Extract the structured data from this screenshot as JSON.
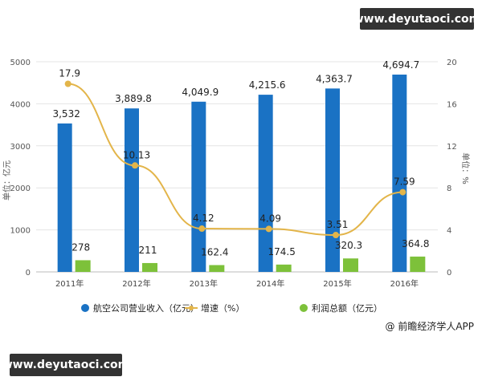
{
  "watermark_top": "www.deyutaoci.com",
  "watermark_bottom": "www.deyutaoci.com",
  "credit": "@ 前瞻经济学人APP",
  "chart_data": {
    "type": "bar",
    "categories": [
      "2011年",
      "2012年",
      "2013年",
      "2014年",
      "2015年",
      "2016年"
    ],
    "y_left": {
      "label": "单位：亿元",
      "range": [
        0,
        5000
      ],
      "ticks": [
        "0",
        "1000",
        "2000",
        "3000",
        "4000",
        "5000"
      ]
    },
    "y_right": {
      "label": "单位：%",
      "range": [
        0,
        20
      ],
      "ticks": [
        "0",
        "4",
        "8",
        "12",
        "16",
        "20"
      ]
    },
    "grid": true,
    "legend_position": "bottom",
    "series": [
      {
        "name": "航空公司营业收入（亿元）",
        "type": "bar",
        "axis": "left",
        "color": "#1a72c4",
        "values": [
          3532,
          3889.8,
          4049.9,
          4215.6,
          4363.7,
          4694.7
        ],
        "labels": [
          "3,532",
          "3,889.8",
          "4,049.9",
          "4,215.6",
          "4,363.7",
          "4,694.7"
        ]
      },
      {
        "name": "增速（%）",
        "type": "line",
        "axis": "right",
        "color": "#e3b54a",
        "values": [
          17.9,
          10.13,
          4.12,
          4.09,
          3.51,
          7.59
        ],
        "labels": [
          "17.9",
          "10.13",
          "4.12",
          "4.09",
          "3.51",
          "7.59"
        ]
      },
      {
        "name": "利润总额（亿元）",
        "type": "bar",
        "axis": "left",
        "color": "#7dc13a",
        "values": [
          278,
          211,
          162.4,
          174.5,
          320.3,
          364.8
        ],
        "labels": [
          "278",
          "211",
          "162.4",
          "174.5",
          "320.3",
          "364.8"
        ]
      }
    ]
  }
}
